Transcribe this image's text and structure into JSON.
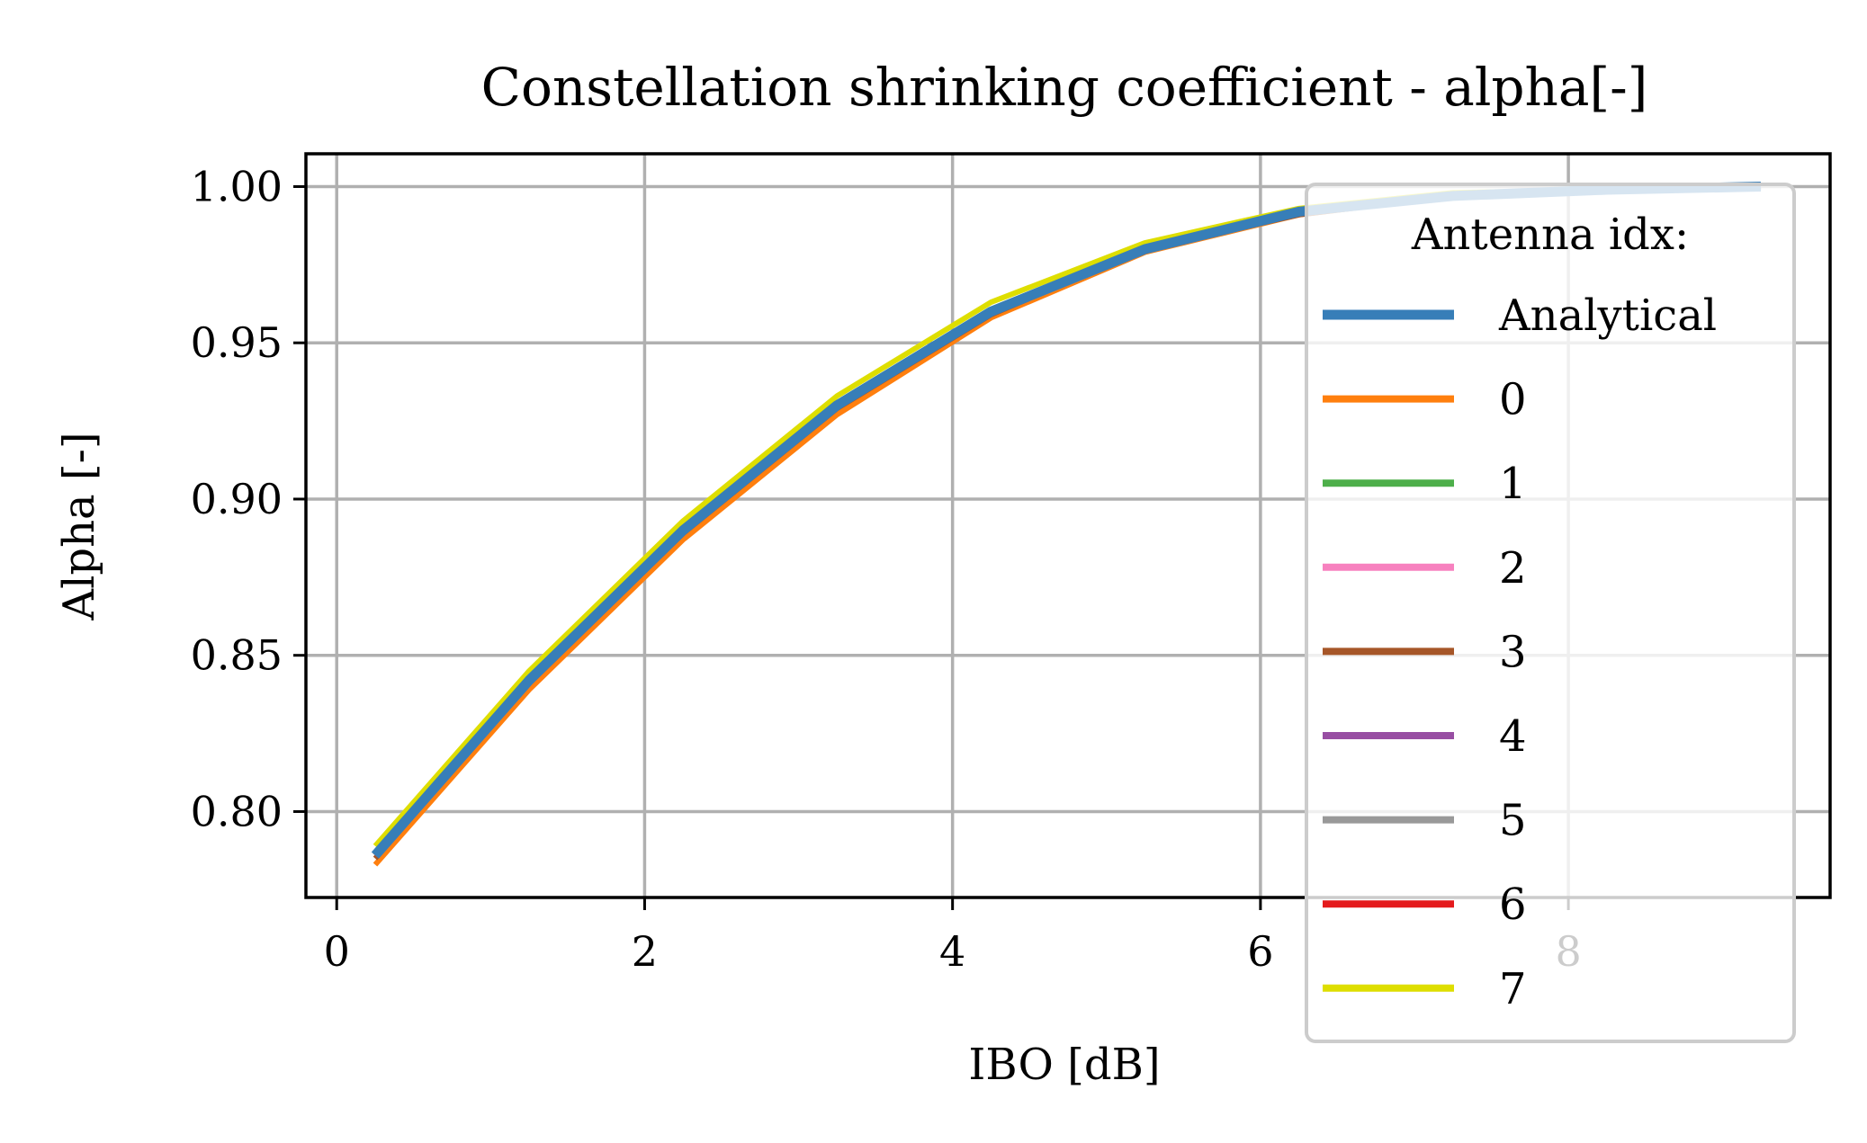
{
  "chart_data": {
    "type": "line",
    "title": "Constellation shrinking coefficient - alpha[-]",
    "xlabel": "IBO [dB]",
    "ylabel": "Alpha [-]",
    "xlim": [
      -0.2,
      9.7
    ],
    "ylim": [
      0.7725,
      1.0105
    ],
    "xticks": [
      0,
      2,
      4,
      6,
      8
    ],
    "yticks": [
      0.8,
      0.85,
      0.9,
      0.95,
      1.0
    ],
    "xtick_labels": [
      "0",
      "2",
      "4",
      "6",
      "8"
    ],
    "ytick_labels": [
      "0.80",
      "0.85",
      "0.90",
      "0.95",
      "1.00"
    ],
    "grid": true,
    "legend": {
      "title": "Antenna idx:",
      "placement": "right",
      "entries": [
        "Analytical",
        "0",
        "1",
        "2",
        "3",
        "4",
        "5",
        "6",
        "7"
      ]
    },
    "x": [
      0.25,
      1.25,
      2.25,
      3.25,
      4.25,
      5.25,
      6.25,
      7.25,
      8.25,
      9.25
    ],
    "series": [
      {
        "name": "0",
        "color": "#ff7f0e",
        "values": [
          0.783,
          0.839,
          0.887,
          0.927,
          0.958,
          0.979,
          0.991,
          0.997,
          0.999,
          1.0
        ]
      },
      {
        "name": "1",
        "color": "#4daf4a",
        "values": [
          0.786,
          0.842,
          0.89,
          0.93,
          0.96,
          0.98,
          0.992,
          0.997,
          0.999,
          1.0
        ]
      },
      {
        "name": "2",
        "color": "#f781bf",
        "values": [
          0.786,
          0.842,
          0.89,
          0.93,
          0.96,
          0.98,
          0.992,
          0.997,
          0.999,
          1.0
        ]
      },
      {
        "name": "3",
        "color": "#a65628",
        "values": [
          0.785,
          0.841,
          0.889,
          0.929,
          0.959,
          0.98,
          0.991,
          0.997,
          0.999,
          1.0
        ]
      },
      {
        "name": "4",
        "color": "#984ea3",
        "values": [
          0.786,
          0.842,
          0.89,
          0.93,
          0.96,
          0.98,
          0.992,
          0.997,
          0.999,
          1.0
        ]
      },
      {
        "name": "5",
        "color": "#999999",
        "values": [
          0.786,
          0.842,
          0.89,
          0.93,
          0.96,
          0.98,
          0.992,
          0.997,
          0.999,
          1.0
        ]
      },
      {
        "name": "6",
        "color": "#e41a1c",
        "values": [
          0.786,
          0.842,
          0.89,
          0.93,
          0.96,
          0.98,
          0.992,
          0.997,
          0.999,
          1.0
        ]
      },
      {
        "name": "7",
        "color": "#dede00",
        "values": [
          0.789,
          0.845,
          0.893,
          0.933,
          0.963,
          0.982,
          0.993,
          0.998,
          0.999,
          1.0
        ]
      },
      {
        "name": "Analytical",
        "color": "#377eb8",
        "values": [
          0.786,
          0.842,
          0.89,
          0.93,
          0.96,
          0.98,
          0.992,
          0.997,
          0.999,
          1.0
        ]
      }
    ]
  }
}
